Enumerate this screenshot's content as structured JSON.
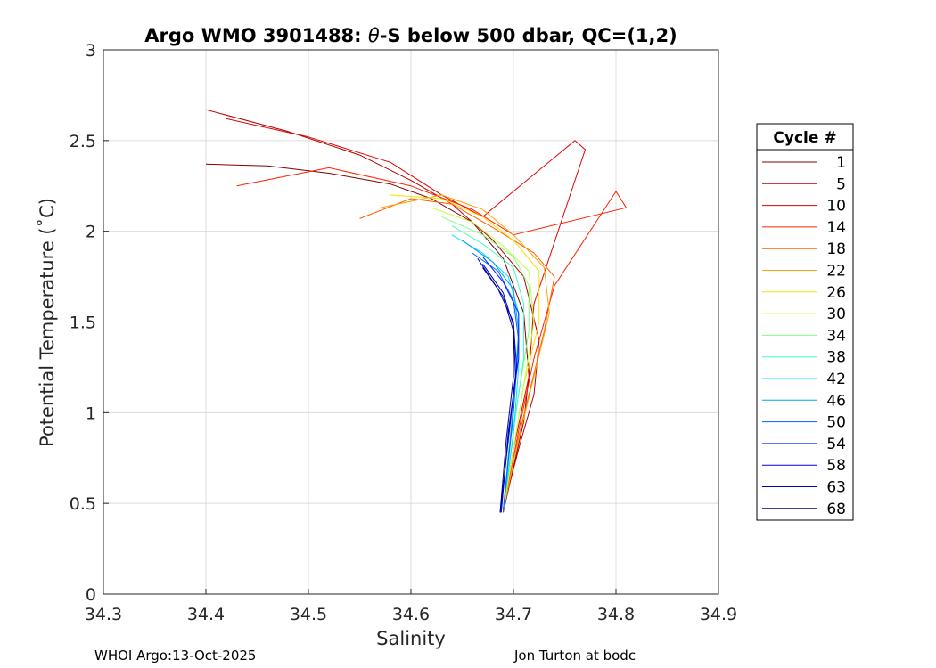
{
  "chart_data": {
    "type": "line",
    "title_prefix": "Argo WMO 3901488: ",
    "title_symbol": "θ",
    "title_suffix": "-S below 500 dbar,  QC=(1,2)",
    "xlabel": "Salinity",
    "ylabel": "Potential Temperature (˚C)",
    "xlim": [
      34.3,
      34.9
    ],
    "ylim": [
      0,
      3
    ],
    "xticks": [
      34.3,
      34.4,
      34.5,
      34.6,
      34.7,
      34.8,
      34.9
    ],
    "xtick_labels": [
      "34.3",
      "34.4",
      "34.5",
      "34.6",
      "34.7",
      "34.8",
      "34.9"
    ],
    "yticks": [
      0,
      0.5,
      1,
      1.5,
      2,
      2.5,
      3
    ],
    "ytick_labels": [
      "0",
      "0.5",
      "1",
      "1.5",
      "2",
      "2.5",
      "3"
    ],
    "grid": true,
    "legend_position": "right",
    "legend": {
      "title": "Cycle #",
      "entries": [
        {
          "label": "1",
          "color": "#800000"
        },
        {
          "label": "5",
          "color": "#b30000"
        },
        {
          "label": "10",
          "color": "#e00000"
        },
        {
          "label": "14",
          "color": "#ff2000"
        },
        {
          "label": "18",
          "color": "#ff6000"
        },
        {
          "label": "22",
          "color": "#ffa000"
        },
        {
          "label": "26",
          "color": "#ffe000"
        },
        {
          "label": "30",
          "color": "#bfff40"
        },
        {
          "label": "34",
          "color": "#80ff80"
        },
        {
          "label": "38",
          "color": "#40ffbf"
        },
        {
          "label": "42",
          "color": "#00e0ff"
        },
        {
          "label": "46",
          "color": "#00a0ff"
        },
        {
          "label": "50",
          "color": "#0060ff"
        },
        {
          "label": "54",
          "color": "#0020ff"
        },
        {
          "label": "58",
          "color": "#0000e0"
        },
        {
          "label": "63",
          "color": "#0000b0"
        },
        {
          "label": "68",
          "color": "#000080"
        }
      ]
    },
    "series": [
      {
        "name": "1",
        "color": "#800000",
        "x": [
          34.4,
          34.46,
          34.52,
          34.58,
          34.62,
          34.66,
          34.69,
          34.71,
          34.715,
          34.71,
          34.7,
          34.69
        ],
        "y": [
          2.37,
          2.36,
          2.32,
          2.26,
          2.18,
          2.05,
          1.85,
          1.55,
          1.2,
          0.95,
          0.7,
          0.45
        ]
      },
      {
        "name": "5",
        "color": "#b30000",
        "x": [
          34.4,
          34.48,
          34.55,
          34.6,
          34.64,
          34.68,
          34.71,
          34.725,
          34.72,
          34.705,
          34.69
        ],
        "y": [
          2.67,
          2.55,
          2.42,
          2.28,
          2.15,
          1.95,
          1.75,
          1.4,
          1.1,
          0.8,
          0.47
        ]
      },
      {
        "name": "10",
        "color": "#e00000",
        "x": [
          34.42,
          34.5,
          34.58,
          34.63,
          34.67,
          34.76,
          34.77,
          34.72,
          34.715,
          34.7,
          34.69
        ],
        "y": [
          2.62,
          2.52,
          2.38,
          2.2,
          2.08,
          2.5,
          2.45,
          1.6,
          1.2,
          0.8,
          0.47
        ]
      },
      {
        "name": "14",
        "color": "#ff2000",
        "x": [
          34.43,
          34.52,
          34.6,
          34.66,
          34.7,
          34.81,
          34.8,
          34.74,
          34.72,
          34.705,
          34.69
        ],
        "y": [
          2.25,
          2.35,
          2.25,
          2.12,
          1.98,
          2.13,
          2.22,
          1.7,
          1.3,
          0.9,
          0.46
        ]
      },
      {
        "name": "18",
        "color": "#ff6000",
        "x": [
          34.55,
          34.6,
          34.64,
          34.68,
          34.72,
          34.74,
          34.73,
          34.715,
          34.7,
          34.69
        ],
        "y": [
          2.07,
          2.18,
          2.15,
          2.02,
          1.88,
          1.75,
          1.45,
          1.1,
          0.75,
          0.46
        ]
      },
      {
        "name": "22",
        "color": "#ffa000",
        "x": [
          34.57,
          34.63,
          34.67,
          34.7,
          34.73,
          34.735,
          34.72,
          34.705,
          34.69
        ],
        "y": [
          2.13,
          2.2,
          2.12,
          1.98,
          1.8,
          1.55,
          1.2,
          0.85,
          0.46
        ]
      },
      {
        "name": "26",
        "color": "#ffe000",
        "x": [
          34.58,
          34.63,
          34.67,
          34.7,
          34.725,
          34.725,
          34.71,
          34.7,
          34.69
        ],
        "y": [
          2.2,
          2.18,
          2.08,
          1.95,
          1.78,
          1.5,
          1.15,
          0.8,
          0.46
        ]
      },
      {
        "name": "30",
        "color": "#bfff40",
        "x": [
          34.62,
          34.66,
          34.69,
          34.715,
          34.72,
          34.71,
          34.7,
          34.69
        ],
        "y": [
          2.13,
          2.05,
          1.92,
          1.78,
          1.5,
          1.15,
          0.8,
          0.46
        ]
      },
      {
        "name": "34",
        "color": "#80ff80",
        "x": [
          34.63,
          34.67,
          34.7,
          34.715,
          34.715,
          34.705,
          34.695,
          34.69
        ],
        "y": [
          2.08,
          1.98,
          1.86,
          1.7,
          1.45,
          1.1,
          0.78,
          0.46
        ]
      },
      {
        "name": "38",
        "color": "#40ffbf",
        "x": [
          34.64,
          34.67,
          34.7,
          34.71,
          34.71,
          34.7,
          34.69
        ],
        "y": [
          2.03,
          1.93,
          1.8,
          1.6,
          1.3,
          0.9,
          0.46
        ]
      },
      {
        "name": "42",
        "color": "#00e0ff",
        "x": [
          34.64,
          34.67,
          34.695,
          34.705,
          34.705,
          34.7,
          34.69
        ],
        "y": [
          1.98,
          1.88,
          1.75,
          1.55,
          1.25,
          0.88,
          0.46
        ]
      },
      {
        "name": "46",
        "color": "#00a0ff",
        "x": [
          34.65,
          34.68,
          34.7,
          34.705,
          34.7,
          34.69
        ],
        "y": [
          1.95,
          1.83,
          1.68,
          1.45,
          1.05,
          0.46
        ]
      },
      {
        "name": "50",
        "color": "#0060ff",
        "x": [
          34.66,
          34.685,
          34.7,
          34.705,
          34.7,
          34.69
        ],
        "y": [
          1.88,
          1.78,
          1.62,
          1.4,
          1.0,
          0.46
        ]
      },
      {
        "name": "54",
        "color": "#0020ff",
        "x": [
          34.67,
          34.69,
          34.705,
          34.705,
          34.695,
          34.688
        ],
        "y": [
          1.86,
          1.72,
          1.55,
          1.3,
          0.9,
          0.45
        ]
      },
      {
        "name": "58",
        "color": "#0000e0",
        "x": [
          34.665,
          34.685,
          34.7,
          34.703,
          34.695,
          34.688
        ],
        "y": [
          1.85,
          1.68,
          1.5,
          1.25,
          0.88,
          0.45
        ]
      },
      {
        "name": "63",
        "color": "#0000b0",
        "x": [
          34.67,
          34.69,
          34.7,
          34.702,
          34.695,
          34.687
        ],
        "y": [
          1.82,
          1.66,
          1.48,
          1.2,
          0.85,
          0.45
        ]
      },
      {
        "name": "68",
        "color": "#000080",
        "x": [
          34.67,
          34.69,
          34.7,
          34.7,
          34.693,
          34.687
        ],
        "y": [
          1.8,
          1.64,
          1.45,
          1.2,
          0.85,
          0.45
        ]
      }
    ]
  },
  "footer": {
    "left": "WHOI Argo:13-Oct-2025",
    "right": "Jon Turton at bodc"
  }
}
